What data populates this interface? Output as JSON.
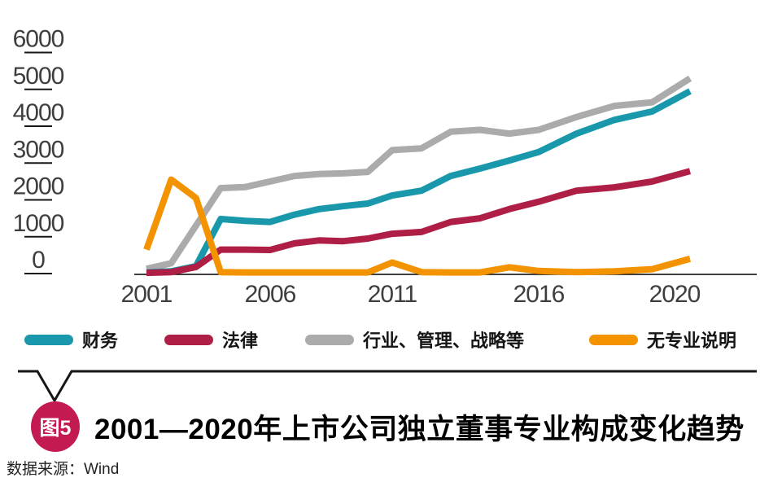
{
  "chart_data": {
    "type": "line",
    "x": [
      2001,
      2002,
      2003,
      2004,
      2005,
      2006,
      2007,
      2008,
      2009,
      2010,
      2011,
      2012,
      2013,
      2014,
      2015,
      2016,
      2017,
      2018,
      2019,
      2020
    ],
    "series": [
      {
        "name": "财务",
        "color": "#1998AB",
        "values": [
          30,
          60,
          200,
          1480,
          1430,
          1400,
          1600,
          1750,
          1830,
          1900,
          2120,
          2250,
          2650,
          2850,
          3070,
          3300,
          3800,
          4170,
          4400,
          4950
        ]
      },
      {
        "name": "法律",
        "color": "#AF1E45",
        "values": [
          20,
          40,
          180,
          650,
          650,
          640,
          820,
          900,
          880,
          950,
          1080,
          1130,
          1400,
          1500,
          1750,
          1950,
          2250,
          2340,
          2500,
          2780
        ]
      },
      {
        "name": "行业、管理、战略等",
        "color": "#ABABAB",
        "values": [
          130,
          280,
          1300,
          2320,
          2350,
          2500,
          2650,
          2700,
          2720,
          2760,
          3350,
          3400,
          3850,
          3900,
          3800,
          3900,
          4250,
          4550,
          4650,
          5300
        ]
      },
      {
        "name": "无专业说明",
        "color": "#F39300",
        "values": [
          650,
          2550,
          2050,
          40,
          30,
          30,
          30,
          30,
          30,
          30,
          300,
          40,
          30,
          30,
          170,
          70,
          40,
          60,
          120,
          400
        ]
      }
    ],
    "draw_order": [
      "行业、管理、战略等",
      "财务",
      "法律",
      "无专业说明"
    ],
    "ylim": [
      0,
      6000
    ],
    "yticks": [
      6000,
      5000,
      4000,
      3000,
      2000,
      1000,
      0
    ],
    "xticks": [
      2001,
      2006,
      2011,
      2016,
      2020
    ],
    "grid": false,
    "legend_position": "below-chart",
    "title": "2001—2020年上市公司独立董事专业构成变化趋势"
  },
  "legend": {
    "items": [
      {
        "label": "财务",
        "color": "#1998AB"
      },
      {
        "label": "法律",
        "color": "#AF1E45"
      },
      {
        "label": "行业、管理、战略等",
        "color": "#ABABAB"
      },
      {
        "label": "无专业说明",
        "color": "#F39300"
      }
    ]
  },
  "figure": {
    "badge_label": "图5",
    "badge_color": "#C41A52",
    "title": "2001—2020年上市公司独立董事专业构成变化趋势",
    "source": "数据来源：Wind"
  }
}
